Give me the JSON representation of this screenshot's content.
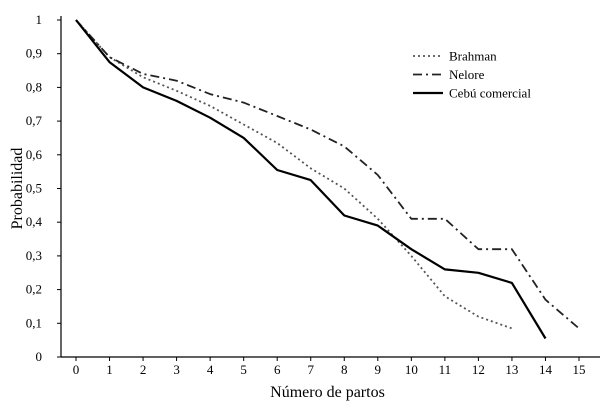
{
  "chart_data": {
    "type": "line",
    "xlabel": "Número de partos",
    "ylabel": "Probabilidad",
    "xlim": [
      0,
      15
    ],
    "ylim": [
      0,
      1
    ],
    "x_ticks": [
      "0",
      "1",
      "2",
      "3",
      "4",
      "5",
      "6",
      "7",
      "8",
      "9",
      "10",
      "11",
      "12",
      "13",
      "14",
      "15"
    ],
    "y_ticks": [
      "0",
      "0,1",
      "0,2",
      "0,3",
      "0,4",
      "0,5",
      "0,6",
      "0,7",
      "0,8",
      "0,9",
      "1"
    ],
    "grid": false,
    "legend_position": "top-right",
    "series": [
      {
        "name": "Brahman",
        "style": "dotted",
        "color": "#555555",
        "x": [
          0,
          1,
          2,
          3,
          4,
          5,
          6,
          7,
          8,
          9,
          10,
          11,
          12,
          13
        ],
        "y": [
          1.0,
          0.89,
          0.83,
          0.79,
          0.745,
          0.69,
          0.635,
          0.56,
          0.5,
          0.41,
          0.3,
          0.18,
          0.12,
          0.085
        ]
      },
      {
        "name": "Nelore",
        "style": "dash-dot",
        "color": "#222222",
        "x": [
          0,
          1,
          2,
          3,
          4,
          5,
          6,
          7,
          8,
          9,
          10,
          11,
          12,
          13,
          14,
          15
        ],
        "y": [
          1.0,
          0.89,
          0.84,
          0.82,
          0.78,
          0.755,
          0.715,
          0.675,
          0.625,
          0.54,
          0.41,
          0.41,
          0.32,
          0.32,
          0.17,
          0.085
        ]
      },
      {
        "name": "Cebú comercial",
        "style": "solid",
        "color": "#000000",
        "x": [
          0,
          1,
          2,
          3,
          4,
          5,
          6,
          7,
          8,
          9,
          10,
          11,
          12,
          13,
          14
        ],
        "y": [
          1.0,
          0.875,
          0.8,
          0.76,
          0.71,
          0.65,
          0.555,
          0.525,
          0.42,
          0.39,
          0.32,
          0.26,
          0.25,
          0.22,
          0.055
        ]
      }
    ]
  }
}
